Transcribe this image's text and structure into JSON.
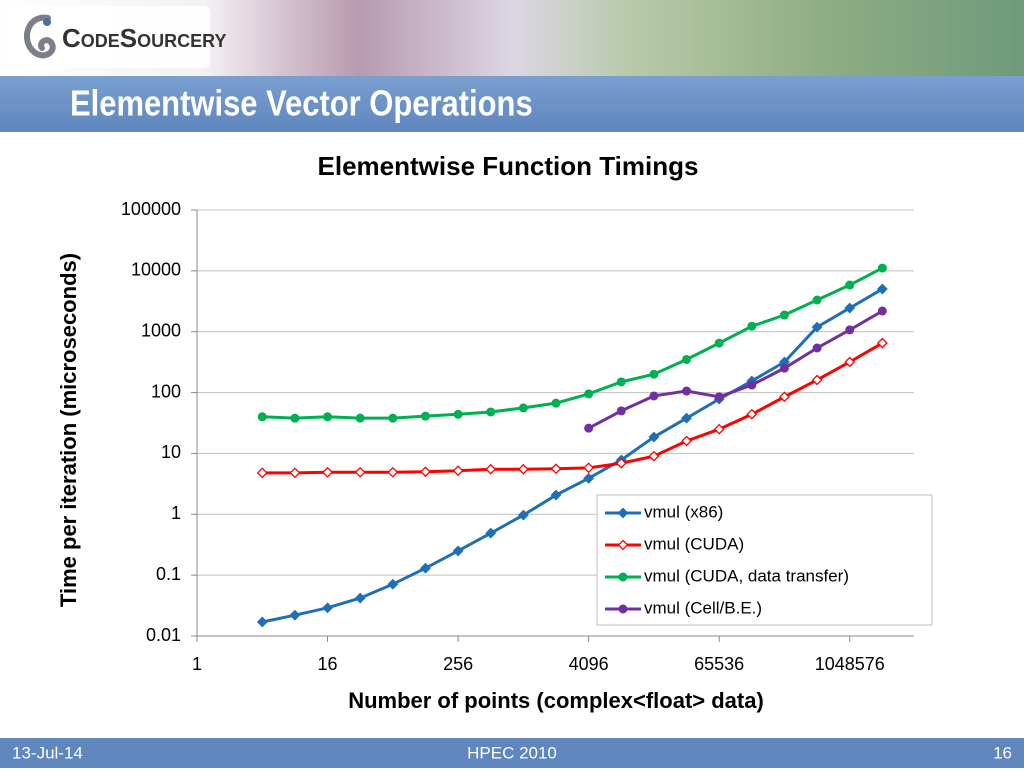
{
  "header": {
    "logo": "CodeSourcery",
    "title": "Elementwise Vector Operations"
  },
  "chart_data": {
    "type": "line",
    "title": "Elementwise Function Timings",
    "xlabel": "Number of points (complex<float> data)",
    "ylabel": "Time per iteration (microseconds)",
    "x": [
      4,
      8,
      16,
      32,
      64,
      128,
      256,
      512,
      1024,
      2048,
      4096,
      8192,
      16384,
      32768,
      65536,
      131072,
      262144,
      524288,
      1048576,
      2097152
    ],
    "series": [
      {
        "name": "vmul (x86)",
        "color": "#1f6fb5",
        "marker": "diamond",
        "values": [
          0.017,
          0.022,
          0.029,
          0.042,
          0.071,
          0.13,
          0.25,
          0.49,
          0.97,
          2.07,
          3.9,
          7.8,
          18.6,
          38,
          78,
          155,
          318,
          1190,
          2450,
          5030
        ]
      },
      {
        "name": "vmul (CUDA)",
        "color": "#ff0000",
        "marker": "diamond-open",
        "values": [
          4.8,
          4.8,
          4.9,
          4.9,
          4.9,
          5.0,
          5.2,
          5.5,
          5.5,
          5.6,
          5.8,
          6.9,
          9.0,
          16,
          25,
          44,
          85,
          161,
          318,
          652
        ]
      },
      {
        "name": "vmul (CUDA, data transfer)",
        "color": "#00b050",
        "marker": "circle",
        "values": [
          40,
          38,
          40,
          38,
          38,
          41,
          44,
          48,
          56,
          67,
          95,
          150,
          200,
          350,
          650,
          1230,
          1880,
          3320,
          5850,
          11100
        ]
      },
      {
        "name": "vmul (Cell/B.E.)",
        "color": "#7030a0",
        "marker": "circle",
        "values": [
          null,
          null,
          null,
          null,
          null,
          null,
          null,
          null,
          null,
          null,
          26,
          50,
          88,
          106,
          85,
          133,
          252,
          540,
          1070,
          2190
        ]
      }
    ],
    "xscale": "log",
    "yscale": "log",
    "xlim": [
      1,
      4194304
    ],
    "ylim": [
      0.01,
      100000
    ],
    "xticks": [
      1,
      16,
      256,
      4096,
      65536,
      1048576
    ],
    "yticks": [
      0.01,
      0.1,
      1,
      10,
      100,
      1000,
      10000,
      100000
    ],
    "grid": true,
    "legend": "lower right"
  },
  "footer": {
    "date": "13-Jul-14",
    "event": "HPEC 2010",
    "page": "16"
  }
}
